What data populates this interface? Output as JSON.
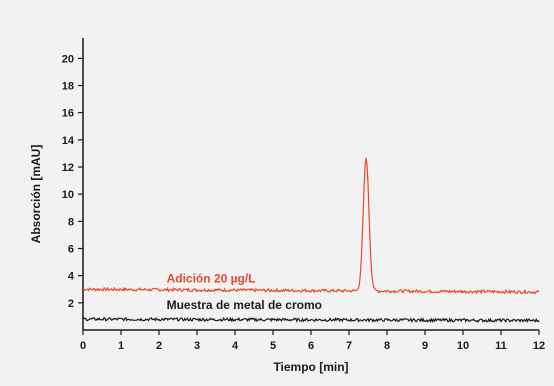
{
  "chart_data": {
    "type": "line",
    "title": "",
    "xlabel": "Tiempo [min]",
    "ylabel": "Absorción [mAU]",
    "xlim": [
      0,
      12
    ],
    "ylim": [
      0,
      21.5
    ],
    "x_ticks": [
      0,
      1,
      2,
      3,
      4,
      5,
      6,
      7,
      8,
      9,
      10,
      11,
      12
    ],
    "y_ticks": [
      2,
      4,
      6,
      8,
      10,
      12,
      14,
      16,
      18,
      20
    ],
    "grid": false,
    "series": [
      {
        "name": "Adición 20 µg/L",
        "color": "#e8482c",
        "baseline": 3.0,
        "baseline_end": 2.8,
        "peak_x": 7.45,
        "peak_y": 12.8,
        "label_x": 2.2,
        "label_y": 3.5
      },
      {
        "name": "Muestra de metal de cromo",
        "color": "#1a1a1a",
        "baseline": 0.8,
        "baseline_end": 0.7,
        "label_x": 2.2,
        "label_y": 1.55
      }
    ]
  }
}
